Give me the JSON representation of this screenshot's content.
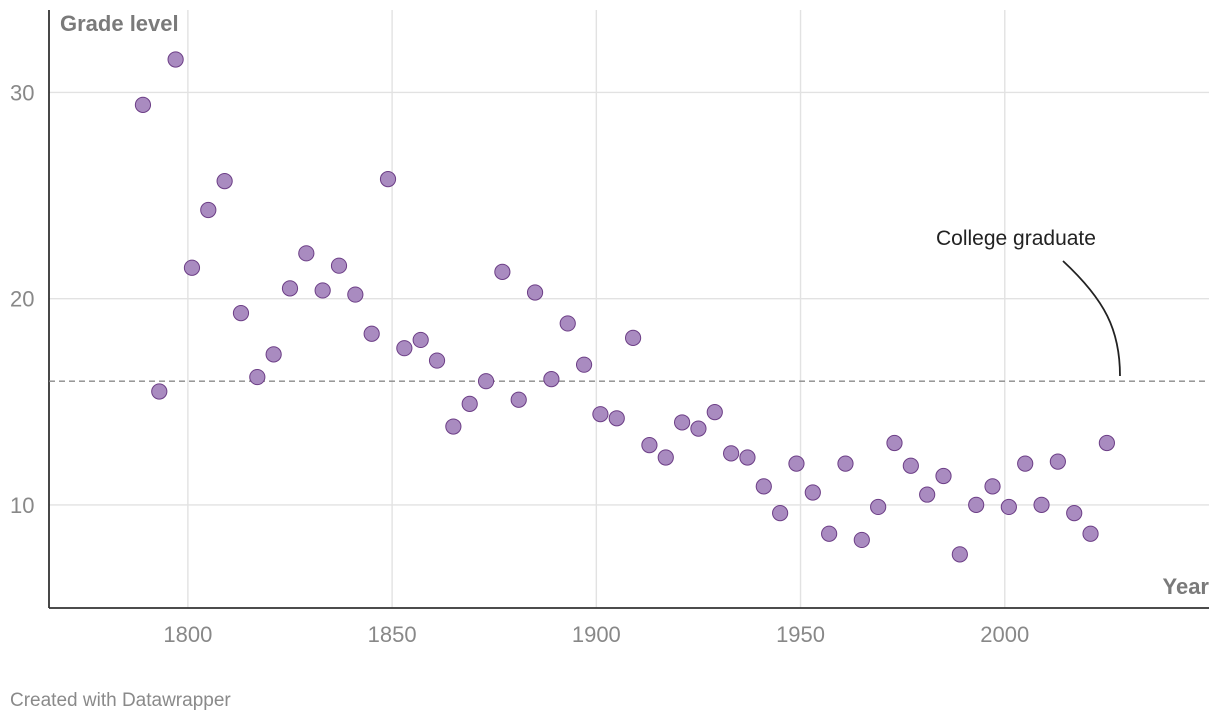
{
  "chart_data": {
    "type": "scatter",
    "title": "",
    "xlabel": "Year",
    "ylabel": "Grade level",
    "xlim": [
      1766,
      2050
    ],
    "ylim": [
      5,
      34
    ],
    "x_ticks": [
      1800,
      1850,
      1900,
      1950,
      2000
    ],
    "y_ticks": [
      10,
      20,
      30
    ],
    "grid": true,
    "color": "#a98bc0",
    "reference_line": {
      "y": 16,
      "label": "College graduate"
    },
    "series": [
      {
        "name": "Grade level",
        "points": [
          {
            "x": 1789,
            "y": 29.4
          },
          {
            "x": 1793,
            "y": 15.5
          },
          {
            "x": 1797,
            "y": 31.6
          },
          {
            "x": 1801,
            "y": 21.5
          },
          {
            "x": 1805,
            "y": 24.3
          },
          {
            "x": 1809,
            "y": 25.7
          },
          {
            "x": 1813,
            "y": 19.3
          },
          {
            "x": 1817,
            "y": 16.2
          },
          {
            "x": 1821,
            "y": 17.3
          },
          {
            "x": 1825,
            "y": 20.5
          },
          {
            "x": 1829,
            "y": 22.2
          },
          {
            "x": 1833,
            "y": 20.4
          },
          {
            "x": 1837,
            "y": 21.6
          },
          {
            "x": 1841,
            "y": 20.2
          },
          {
            "x": 1845,
            "y": 18.3
          },
          {
            "x": 1849,
            "y": 25.8
          },
          {
            "x": 1853,
            "y": 17.6
          },
          {
            "x": 1857,
            "y": 18.0
          },
          {
            "x": 1861,
            "y": 17.0
          },
          {
            "x": 1865,
            "y": 13.8
          },
          {
            "x": 1869,
            "y": 14.9
          },
          {
            "x": 1873,
            "y": 16.0
          },
          {
            "x": 1877,
            "y": 21.3
          },
          {
            "x": 1881,
            "y": 15.1
          },
          {
            "x": 1885,
            "y": 20.3
          },
          {
            "x": 1889,
            "y": 16.1
          },
          {
            "x": 1893,
            "y": 18.8
          },
          {
            "x": 1897,
            "y": 16.8
          },
          {
            "x": 1901,
            "y": 14.4
          },
          {
            "x": 1905,
            "y": 14.2
          },
          {
            "x": 1909,
            "y": 18.1
          },
          {
            "x": 1913,
            "y": 12.9
          },
          {
            "x": 1917,
            "y": 12.3
          },
          {
            "x": 1921,
            "y": 14.0
          },
          {
            "x": 1925,
            "y": 13.7
          },
          {
            "x": 1929,
            "y": 14.5
          },
          {
            "x": 1933,
            "y": 12.5
          },
          {
            "x": 1937,
            "y": 12.3
          },
          {
            "x": 1941,
            "y": 10.9
          },
          {
            "x": 1945,
            "y": 9.6
          },
          {
            "x": 1949,
            "y": 12.0
          },
          {
            "x": 1953,
            "y": 10.6
          },
          {
            "x": 1957,
            "y": 8.6
          },
          {
            "x": 1961,
            "y": 12.0
          },
          {
            "x": 1965,
            "y": 8.3
          },
          {
            "x": 1969,
            "y": 9.9
          },
          {
            "x": 1973,
            "y": 13.0
          },
          {
            "x": 1977,
            "y": 11.9
          },
          {
            "x": 1981,
            "y": 10.5
          },
          {
            "x": 1985,
            "y": 11.4
          },
          {
            "x": 1989,
            "y": 7.6
          },
          {
            "x": 1993,
            "y": 10.0
          },
          {
            "x": 1997,
            "y": 10.9
          },
          {
            "x": 2001,
            "y": 9.9
          },
          {
            "x": 2005,
            "y": 12.0
          },
          {
            "x": 2009,
            "y": 10.0
          },
          {
            "x": 2013,
            "y": 12.1
          },
          {
            "x": 2017,
            "y": 9.6
          },
          {
            "x": 2021,
            "y": 8.6
          },
          {
            "x": 2025,
            "y": 13.0
          }
        ]
      }
    ]
  },
  "footer": {
    "credit": "Created with Datawrapper"
  }
}
